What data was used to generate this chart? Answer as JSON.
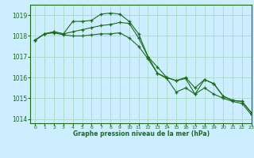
{
  "xlabel": "Graphe pression niveau de la mer (hPa)",
  "background_color": "#cceeff",
  "grid_color": "#aaddcc",
  "line_color": "#1a6b1a",
  "marker": "+",
  "ylim": [
    1013.8,
    1019.5
  ],
  "xlim": [
    -0.5,
    23
  ],
  "yticks": [
    1014,
    1015,
    1016,
    1017,
    1018,
    1019
  ],
  "xticks": [
    0,
    1,
    2,
    3,
    4,
    5,
    6,
    7,
    8,
    9,
    10,
    11,
    12,
    13,
    14,
    15,
    16,
    17,
    18,
    19,
    20,
    21,
    22,
    23
  ],
  "series": [
    {
      "x": [
        0,
        1,
        2,
        3,
        4,
        5,
        6,
        7,
        8,
        9,
        10,
        11,
        12,
        13,
        14,
        15,
        16,
        17,
        18,
        19,
        20,
        21,
        22,
        23
      ],
      "y": [
        1017.8,
        1018.1,
        1018.2,
        1018.1,
        1018.7,
        1018.7,
        1018.75,
        1019.05,
        1019.1,
        1019.05,
        1018.7,
        1018.1,
        1017.0,
        1016.2,
        1016.0,
        1015.85,
        1015.95,
        1015.2,
        1015.9,
        1015.7,
        1015.1,
        1014.9,
        1014.85,
        1014.3
      ]
    },
    {
      "x": [
        0,
        1,
        2,
        3,
        4,
        5,
        6,
        7,
        8,
        9,
        10,
        11,
        12,
        13,
        14,
        15,
        16,
        17,
        18,
        19,
        20,
        21,
        22,
        23
      ],
      "y": [
        1017.8,
        1018.1,
        1018.2,
        1018.1,
        1018.2,
        1018.3,
        1018.4,
        1018.5,
        1018.55,
        1018.65,
        1018.6,
        1017.9,
        1017.0,
        1016.5,
        1016.0,
        1015.85,
        1016.0,
        1015.5,
        1015.9,
        1015.7,
        1015.1,
        1014.9,
        1014.85,
        1014.3
      ]
    },
    {
      "x": [
        0,
        1,
        2,
        3,
        4,
        5,
        6,
        7,
        8,
        9,
        10,
        11,
        12,
        13,
        14,
        15,
        16,
        17,
        18,
        19,
        20,
        21,
        22,
        23
      ],
      "y": [
        1017.8,
        1018.1,
        1018.15,
        1018.05,
        1018.0,
        1018.0,
        1018.05,
        1018.1,
        1018.1,
        1018.15,
        1017.9,
        1017.5,
        1016.9,
        1016.2,
        1015.95,
        1015.3,
        1015.5,
        1015.2,
        1015.5,
        1015.2,
        1015.0,
        1014.85,
        1014.75,
        1014.2
      ]
    }
  ]
}
